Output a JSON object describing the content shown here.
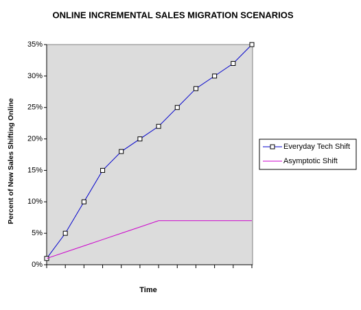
{
  "chart_data": {
    "type": "line",
    "title": "ONLINE INCREMENTAL SALES MIGRATION SCENARIOS",
    "x_label": "Time",
    "y_label": "Percent of New Sales Shifting Online",
    "categories": [
      null,
      null,
      null,
      null,
      null,
      null,
      null,
      null,
      null,
      null,
      null,
      null
    ],
    "series": [
      {
        "name": "Everyday Tech Shift",
        "color": "#0000cc",
        "marker": "square",
        "values": [
          1,
          5,
          10,
          15,
          18,
          20,
          22,
          25,
          28,
          30,
          32,
          35
        ]
      },
      {
        "name": "Asymptotic Shift",
        "color": "#cc00cc",
        "marker": "none",
        "values": [
          1,
          2,
          3,
          4,
          5,
          6,
          7,
          7,
          7,
          7,
          7,
          7
        ]
      }
    ],
    "ylim": [
      0,
      35
    ],
    "yticks": [
      {
        "value": 0,
        "label": "0%"
      },
      {
        "value": 5,
        "label": "5%"
      },
      {
        "value": 10,
        "label": "10%"
      },
      {
        "value": 15,
        "label": "15%"
      },
      {
        "value": 20,
        "label": "20%"
      },
      {
        "value": 25,
        "label": "25%"
      },
      {
        "value": 30,
        "label": "30%"
      },
      {
        "value": 35,
        "label": "35%"
      }
    ],
    "grid": false,
    "plot_background": "#dcdcdc",
    "legend": "right"
  }
}
